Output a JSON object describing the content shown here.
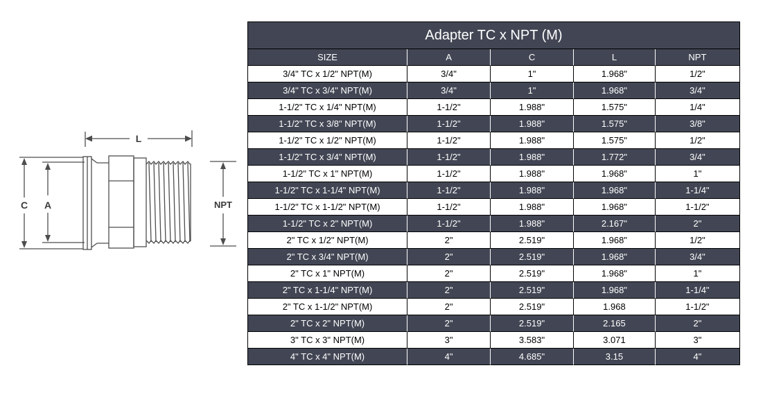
{
  "page": {
    "background": "#ffffff"
  },
  "diagram": {
    "labels": {
      "length": "L",
      "clamp_od": "C",
      "inner_dia": "A",
      "thread": "NPT"
    }
  },
  "table": {
    "title": "Adapter TC x NPT (M)",
    "columns": [
      "SIZE",
      "A",
      "C",
      "L",
      "NPT"
    ],
    "rows": [
      [
        "3/4\" TC x 1/2\" NPT(M)",
        "3/4\"",
        "1\"",
        "1.968\"",
        "1/2\""
      ],
      [
        "3/4\" TC x 3/4\" NPT(M)",
        "3/4\"",
        "1\"",
        "1.968\"",
        "3/4\""
      ],
      [
        "1-1/2\" TC x 1/4\" NPT(M)",
        "1-1/2\"",
        "1.988\"",
        "1.575\"",
        "1/4\""
      ],
      [
        "1-1/2\" TC x 3/8\" NPT(M)",
        "1-1/2\"",
        "1.988\"",
        "1.575\"",
        "3/8\""
      ],
      [
        "1-1/2\" TC x 1/2\" NPT(M)",
        "1-1/2\"",
        "1.988\"",
        "1.575\"",
        "1/2\""
      ],
      [
        "1-1/2\" TC x 3/4\" NPT(M)",
        "1-1/2\"",
        "1.988\"",
        "1.772\"",
        "3/4\""
      ],
      [
        "1-1/2\" TC x 1\" NPT(M)",
        "1-1/2\"",
        "1.988\"",
        "1.968\"",
        "1\""
      ],
      [
        "1-1/2\" TC x 1-1/4\" NPT(M)",
        "1-1/2\"",
        "1.988\"",
        "1.968\"",
        "1-1/4\""
      ],
      [
        "1-1/2\" TC x 1-1/2\" NPT(M)",
        "1-1/2\"",
        "1.988\"",
        "1.968\"",
        "1-1/2\""
      ],
      [
        "1-1/2\" TC x 2\" NPT(M)",
        "1-1/2\"",
        "1.988\"",
        "2.167\"",
        "2\""
      ],
      [
        "2\" TC x 1/2\" NPT(M)",
        "2\"",
        "2.519\"",
        "1.968\"",
        "1/2\""
      ],
      [
        "2\" TC x 3/4\" NPT(M)",
        "2\"",
        "2.519\"",
        "1.968\"",
        "3/4\""
      ],
      [
        "2\" TC x 1\" NPT(M)",
        "2\"",
        "2.519\"",
        "1.968\"",
        "1\""
      ],
      [
        "2\" TC x 1-1/4\" NPT(M)",
        "2\"",
        "2.519\"",
        "1.968\"",
        "1-1/4\""
      ],
      [
        "2\" TC x 1-1/2\" NPT(M)",
        "2\"",
        "2.519\"",
        "1.968",
        "1-1/2\""
      ],
      [
        "2\" TC x 2\" NPT(M)",
        "2\"",
        "2.519\"",
        "2.165",
        "2\""
      ],
      [
        "3\" TC x 3\" NPT(M)",
        "3\"",
        "3.583\"",
        "3.071",
        "3\""
      ],
      [
        "4\" TC x 4\" NPT(M)",
        "4\"",
        "4.685\"",
        "3.15",
        "4\""
      ]
    ]
  },
  "colors": {
    "dark_bg": "#424654",
    "light_row_bg": "#ffffff",
    "light_text": "#ffffff",
    "dark_text": "#000000",
    "diagram_line": "#4d4d4d"
  }
}
